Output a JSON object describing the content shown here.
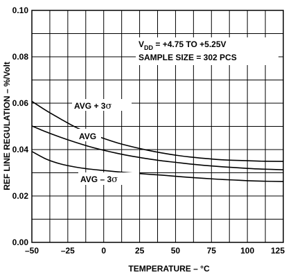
{
  "chart_data": {
    "type": "line",
    "title": "",
    "xlabel": "TEMPERATURE – °C",
    "ylabel": "REF LINE REGULATION – %/Volt",
    "xlim": [
      -50,
      125
    ],
    "ylim": [
      0,
      0.1
    ],
    "x_ticks": [
      "–50",
      "–25",
      "0",
      "25",
      "50",
      "75",
      "100",
      "125"
    ],
    "y_ticks": [
      "0.00",
      "0.02",
      "0.04",
      "0.06",
      "0.08",
      "0.10"
    ],
    "grid": true,
    "annotations": {
      "line1_prefix": "V",
      "line1_sub": "DD",
      "line1_rest": " = +4.75 TO +5.25V",
      "line2": "SAMPLE SIZE = 302 PCS"
    },
    "series": [
      {
        "name": "AVG + 3σ",
        "label_main": "AVG + 3",
        "label_sigma": "σ",
        "x": [
          -50,
          -40,
          -30,
          -20,
          -10,
          0,
          10,
          20,
          30,
          40,
          50,
          60,
          70,
          80,
          90,
          100,
          110,
          125
        ],
        "y": [
          0.0608,
          0.0568,
          0.0532,
          0.0498,
          0.0471,
          0.0448,
          0.0428,
          0.0412,
          0.0398,
          0.0386,
          0.0376,
          0.0368,
          0.0362,
          0.0357,
          0.0354,
          0.0352,
          0.035,
          0.0349
        ]
      },
      {
        "name": "AVG",
        "label_main": "AVG",
        "label_sigma": "",
        "x": [
          -50,
          -40,
          -30,
          -20,
          -10,
          0,
          10,
          20,
          30,
          40,
          50,
          60,
          70,
          80,
          90,
          100,
          110,
          125
        ],
        "y": [
          0.0502,
          0.0476,
          0.0453,
          0.0432,
          0.0413,
          0.0397,
          0.0383,
          0.0371,
          0.0361,
          0.0352,
          0.0345,
          0.0338,
          0.0332,
          0.0327,
          0.0323,
          0.0319,
          0.0316,
          0.0313
        ]
      },
      {
        "name": "AVG – 3σ",
        "label_main": "AVG – 3",
        "label_sigma": "σ",
        "x": [
          -50,
          -40,
          -30,
          -20,
          -10,
          0,
          10,
          20,
          30,
          40,
          50,
          60,
          70,
          80,
          90,
          100,
          110,
          125
        ],
        "y": [
          0.0392,
          0.0359,
          0.0338,
          0.0325,
          0.0316,
          0.031,
          0.0304,
          0.0299,
          0.0294,
          0.029,
          0.0285,
          0.028,
          0.0276,
          0.0272,
          0.0269,
          0.0266,
          0.0264,
          0.0262
        ]
      }
    ]
  }
}
